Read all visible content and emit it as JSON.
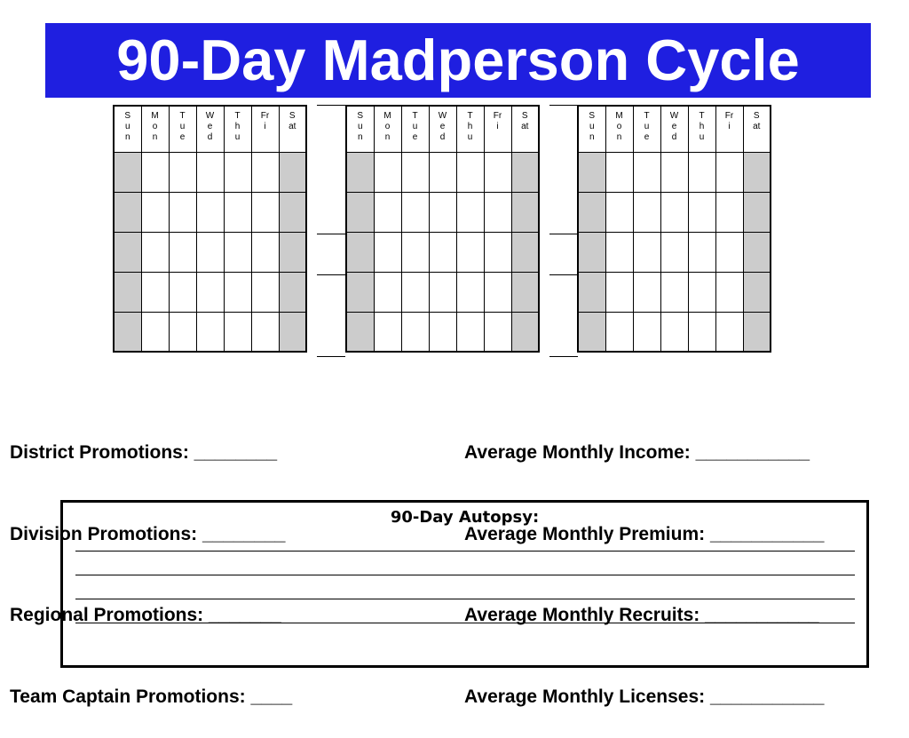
{
  "title": "90-Day Madperson Cycle",
  "calendar": {
    "day_headers": [
      [
        "S",
        "u",
        "n"
      ],
      [
        "M",
        "o",
        "n"
      ],
      [
        "T",
        "u",
        "e"
      ],
      [
        "W",
        "e",
        "d"
      ],
      [
        "T",
        "h",
        "u"
      ],
      [
        "Fr",
        "i"
      ],
      [
        "S",
        "at"
      ]
    ],
    "months": 3,
    "week_rows": 5,
    "weekend_color": "#cccccc"
  },
  "left_stats": [
    "District Promotions: ________",
    "Division Promotions: ________",
    "Regional Promotions: _______",
    "Team Captain Promotions: ____"
  ],
  "right_stats": [
    "Average Monthly Income: ___________",
    "Average Monthly Premium: ___________",
    "Average Monthly Recruits: ___________",
    "Average Monthly Licenses: ___________"
  ],
  "autopsy": {
    "title": "90-Day Autopsy:",
    "lines": 4
  },
  "colors": {
    "title_bg": "#1f1fe0",
    "title_text": "#ffffff"
  }
}
